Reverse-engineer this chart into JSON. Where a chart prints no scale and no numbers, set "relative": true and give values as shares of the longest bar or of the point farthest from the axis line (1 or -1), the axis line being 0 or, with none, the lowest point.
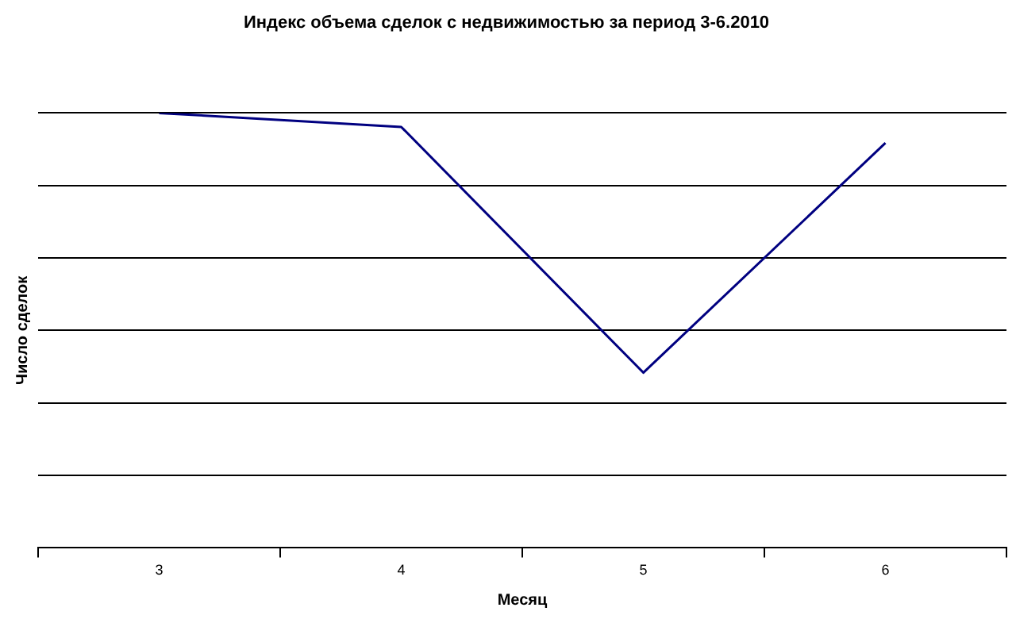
{
  "chart_data": {
    "type": "line",
    "title": "Индекс объема сделок с недвижимостью за период 3-6.2010",
    "xlabel": "Месяц",
    "ylabel": "Число сделок",
    "categories": [
      "3",
      "4",
      "5",
      "6"
    ],
    "series": [
      {
        "color": "#000080",
        "values": [
          1,
          0.968,
          0.403,
          0.931
        ]
      }
    ],
    "relative": true,
    "grid": "y",
    "legend": false,
    "marker": "none"
  }
}
